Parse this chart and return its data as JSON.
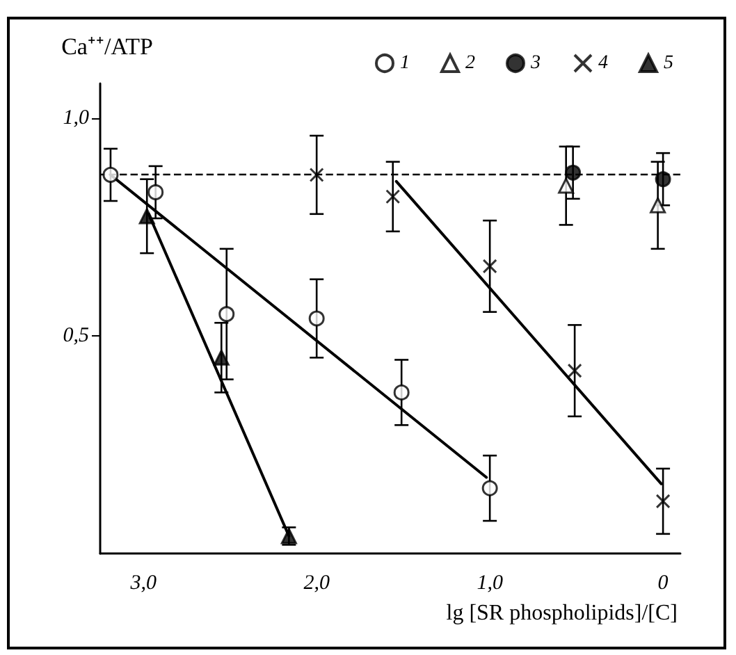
{
  "chart_data": {
    "type": "scatter",
    "xlabel": "lg [SR phospholipids]/[C]",
    "ylabel": "Ca⁺⁺/ATP",
    "xlim": [
      3.25,
      -0.1
    ],
    "xticks": [
      {
        "value": 3,
        "label": "3,0"
      },
      {
        "value": 2,
        "label": "2,0"
      },
      {
        "value": 1,
        "label": "1,0"
      },
      0
    ],
    "ylim": [
      0,
      1.08
    ],
    "yticks": [
      {
        "value": 0.5,
        "label": "0,5"
      },
      {
        "value": 1,
        "label": "1,0"
      }
    ],
    "legend": "top right",
    "grid": false,
    "ref_lines": [
      {
        "axis": "y",
        "value": 0.87,
        "line_style": "dashed",
        "color": "#000000"
      }
    ],
    "series": [
      {
        "name": "1",
        "color": "#ffffff",
        "marker": "circle",
        "x": [
          3.19,
          2.93,
          2.52,
          2.0,
          1.51,
          1.0
        ],
        "values": [
          0.87,
          0.83,
          0.55,
          0.54,
          0.37,
          0.15
        ],
        "errors": [
          0.06,
          0.06,
          0.15,
          0.09,
          0.075,
          0.075
        ]
      },
      {
        "name": "2",
        "color": "#ffffff",
        "marker": "triangle",
        "x": [
          0.56,
          0.03
        ],
        "values": [
          0.845,
          0.8
        ],
        "errors": [
          0.09,
          0.1
        ]
      },
      {
        "name": "3",
        "color": "#000000",
        "marker": "circle",
        "x": [
          0.52,
          0.0
        ],
        "values": [
          0.875,
          0.86
        ],
        "errors": [
          0.06,
          0.06
        ]
      },
      {
        "name": "4",
        "color": "#000000",
        "marker": "cross",
        "x": [
          2.0,
          1.56,
          1.0,
          0.51,
          0.0
        ],
        "values": [
          0.87,
          0.82,
          0.66,
          0.42,
          0.12
        ],
        "errors": [
          0.09,
          0.08,
          0.105,
          0.105,
          0.075
        ]
      },
      {
        "name": "5",
        "color": "#000000",
        "marker": "triangle",
        "x": [
          2.98,
          2.55,
          2.16
        ],
        "values": [
          0.775,
          0.45,
          0.04
        ],
        "errors": [
          0.085,
          0.08,
          0.02
        ]
      },
      {
        "type": "line",
        "color": "#000000",
        "line_style": "solid",
        "x": [
          3.19,
          1.02
        ],
        "values": [
          0.87,
          0.175
        ]
      },
      {
        "type": "line",
        "color": "#000000",
        "line_style": "solid",
        "x": [
          2.97,
          2.16
        ],
        "values": [
          0.78,
          0.04
        ]
      },
      {
        "type": "line",
        "color": "#000000",
        "line_style": "solid",
        "x": [
          1.54,
          0.01
        ],
        "values": [
          0.855,
          0.16
        ]
      }
    ]
  }
}
